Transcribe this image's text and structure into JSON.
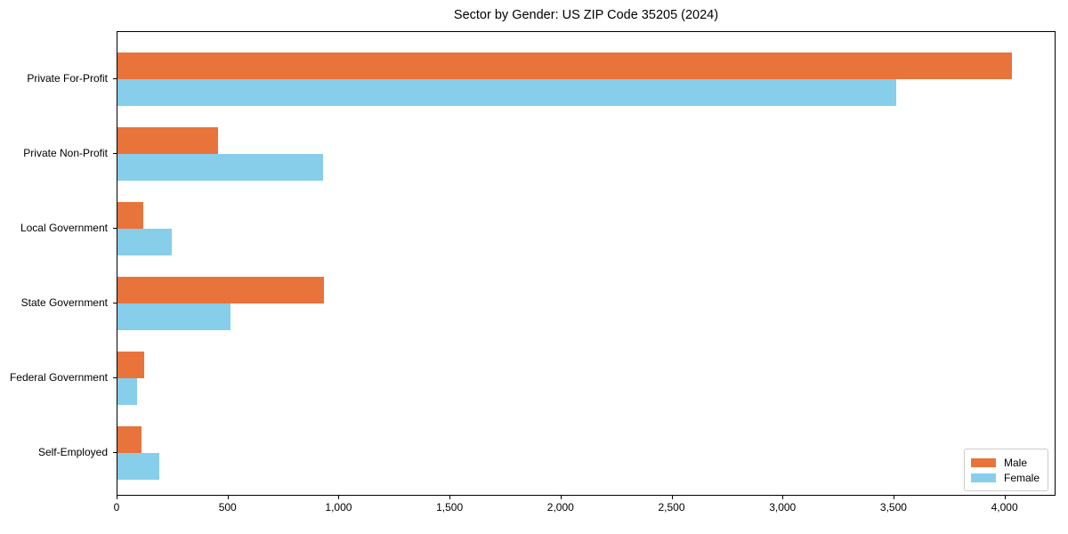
{
  "title": "Sector by Gender: US ZIP Code 35205 (2024)",
  "chart_data": {
    "type": "bar",
    "orientation": "horizontal",
    "title": "Sector by Gender: US ZIP Code 35205 (2024)",
    "categories": [
      "Private For-Profit",
      "Private Non-Profit",
      "Local Government",
      "State Government",
      "Federal Government",
      "Self-Employed"
    ],
    "series": [
      {
        "name": "Male",
        "color": "#E8743B",
        "values": [
          4030,
          455,
          115,
          930,
          120,
          110
        ]
      },
      {
        "name": "Female",
        "color": "#87CEEB",
        "values": [
          3510,
          925,
          245,
          510,
          90,
          190
        ]
      }
    ],
    "xlabel": "",
    "ylabel": "",
    "xlim": [
      0,
      4230
    ],
    "x_ticks": [
      0,
      500,
      1000,
      1500,
      2000,
      2500,
      3000,
      3500,
      4000
    ],
    "x_tick_labels": [
      "0",
      "500",
      "1,000",
      "1,500",
      "2,000",
      "2,500",
      "3,000",
      "3,500",
      "4,000"
    ],
    "grid": false,
    "legend_position": "lower right",
    "axis_color": "#000000",
    "background_color": "#ffffff"
  }
}
